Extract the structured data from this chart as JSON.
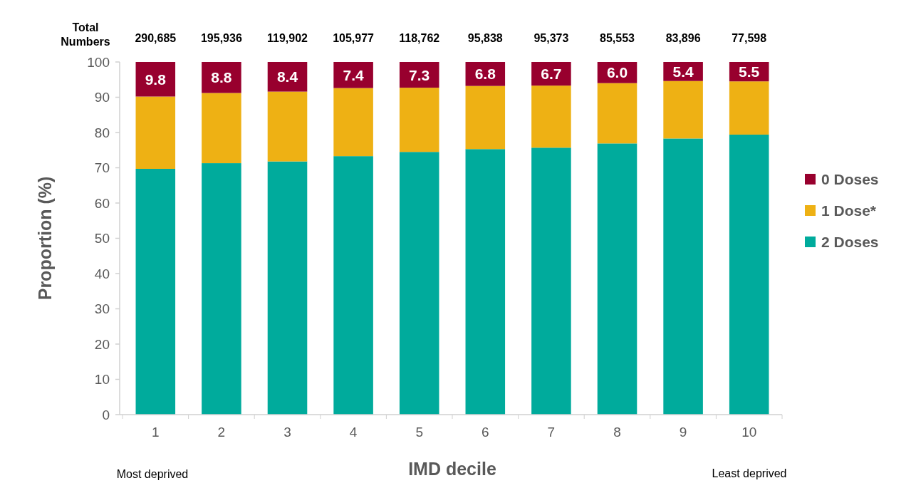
{
  "chart_data": {
    "type": "bar",
    "stacked": true,
    "xlabel": "IMD decile",
    "ylabel": "Proportion (%)",
    "categories": [
      "1",
      "2",
      "3",
      "4",
      "5",
      "6",
      "7",
      "8",
      "9",
      "10"
    ],
    "series": [
      {
        "name": "2 Doses",
        "color": "#00ab9c",
        "values": [
          69.7,
          71.3,
          71.8,
          73.3,
          74.5,
          75.3,
          75.7,
          76.9,
          78.3,
          79.4
        ]
      },
      {
        "name": "1 Dose*",
        "color": "#eeb114",
        "values": [
          20.5,
          19.9,
          19.8,
          19.3,
          18.2,
          17.9,
          17.6,
          17.1,
          16.3,
          15.1
        ]
      },
      {
        "name": "0 Doses",
        "color": "#98002e",
        "values": [
          9.8,
          8.8,
          8.4,
          7.4,
          7.3,
          6.8,
          6.7,
          6.0,
          5.4,
          5.5
        ],
        "value_labels": [
          "9.8",
          "8.8",
          "8.4",
          "7.4",
          "7.3",
          "6.8",
          "6.7",
          "6.0",
          "5.4",
          "5.5"
        ]
      }
    ],
    "annotations": [
      "Total Numbers",
      "Most deprived",
      "Least deprived",
      "290,685",
      "195,936",
      "119,902",
      "105,977",
      "118,762",
      "95,838",
      "95,373",
      "85,553",
      "83,896",
      "77,598"
    ],
    "ylim": [
      0,
      100
    ],
    "yticks": [
      0,
      10,
      20,
      30,
      40,
      50,
      60,
      70,
      80,
      90,
      100
    ],
    "grid": false,
    "legend": "right"
  }
}
